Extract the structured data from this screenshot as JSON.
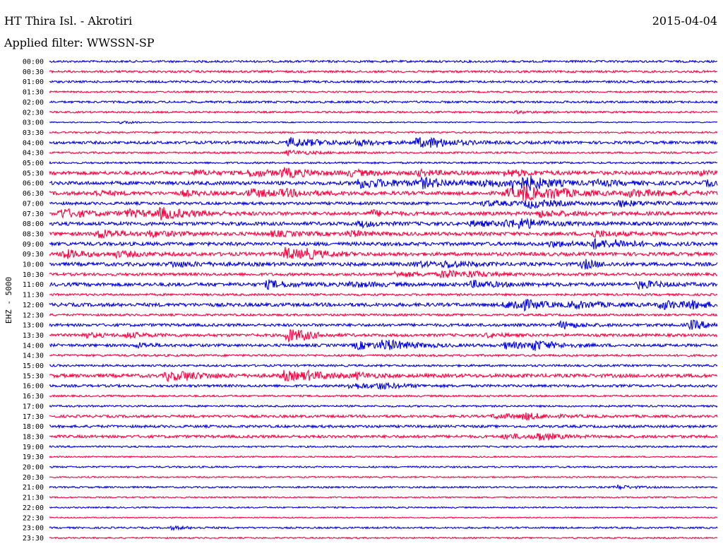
{
  "header": {
    "title": "HT Thira Isl. - Akrotiri",
    "date": "2015-04-04",
    "filter": "Applied filter: WWSSN-SP"
  },
  "colors": {
    "odd_rows": "#0000e0",
    "even_rows": "#ff0040"
  },
  "chart_data": {
    "type": "line",
    "title": "",
    "ylabel": "EHZ - 5000",
    "grid": false,
    "categories": [
      "00:00",
      "00:30",
      "01:00",
      "01:30",
      "02:00",
      "02:30",
      "03:00",
      "03:30",
      "04:00",
      "04:30",
      "05:00",
      "05:30",
      "06:00",
      "06:30",
      "07:00",
      "07:30",
      "08:00",
      "08:30",
      "09:00",
      "09:30",
      "10:00",
      "10:30",
      "11:00",
      "11:30",
      "12:00",
      "12:30",
      "13:00",
      "13:30",
      "14:00",
      "14:30",
      "15:00",
      "15:30",
      "16:00",
      "16:30",
      "17:00",
      "17:30",
      "18:00",
      "18:30",
      "19:00",
      "19:30",
      "20:00",
      "20:30",
      "21:00",
      "21:30",
      "22:00",
      "22:30",
      "23:00",
      "23:30"
    ],
    "x_range_minutes": [
      0,
      30
    ],
    "series": [
      {
        "noise": 1.5,
        "events": []
      },
      {
        "noise": 1.5,
        "events": []
      },
      {
        "noise": 1.5,
        "events": []
      },
      {
        "noise": 1.2,
        "events": []
      },
      {
        "noise": 1.5,
        "events": []
      },
      {
        "noise": 1.3,
        "events": [
          [
            21.0,
            1.5,
            1.2
          ]
        ]
      },
      {
        "noise": 0.8,
        "events": [
          [
            3.2,
            0.5,
            1.5
          ],
          [
            3.6,
            0.5,
            1.5
          ]
        ]
      },
      {
        "noise": 1.2,
        "events": []
      },
      {
        "noise": 2.0,
        "events": [
          [
            10.8,
            2.5,
            6
          ],
          [
            13.8,
            1.5,
            3
          ],
          [
            16.5,
            2.0,
            6
          ],
          [
            17.2,
            1.5,
            3
          ]
        ]
      },
      {
        "noise": 1.3,
        "events": [
          [
            10.7,
            1.8,
            3
          ]
        ]
      },
      {
        "noise": 1.3,
        "events": []
      },
      {
        "noise": 2.5,
        "events": [
          [
            6.5,
            1.5,
            3
          ],
          [
            9.0,
            2.0,
            4
          ],
          [
            10.5,
            2.0,
            5
          ],
          [
            13.5,
            2.0,
            3
          ],
          [
            16.5,
            2.0,
            3
          ],
          [
            20.5,
            2.0,
            4
          ],
          [
            29.2,
            1.0,
            3
          ]
        ]
      },
      {
        "noise": 2.5,
        "events": [
          [
            13.8,
            3.5,
            6
          ],
          [
            16.7,
            2.0,
            5
          ],
          [
            19.5,
            2.0,
            4
          ],
          [
            20.8,
            2.0,
            8
          ],
          [
            21.5,
            1.5,
            4
          ],
          [
            24.5,
            2.0,
            3
          ],
          [
            29.5,
            1.0,
            3
          ]
        ]
      },
      {
        "noise": 2.5,
        "events": [
          [
            2.0,
            1.5,
            3
          ],
          [
            6.0,
            1.5,
            3
          ],
          [
            9.0,
            2.5,
            5
          ],
          [
            10.5,
            2.0,
            3
          ],
          [
            20.5,
            3.0,
            5
          ],
          [
            21.3,
            1.0,
            8
          ],
          [
            22.5,
            2.0,
            5
          ],
          [
            26.0,
            3.0,
            4
          ]
        ]
      },
      {
        "noise": 2.0,
        "events": [
          [
            19.5,
            3.0,
            3
          ],
          [
            21.5,
            2.0,
            5
          ],
          [
            25.5,
            2.0,
            4
          ]
        ]
      },
      {
        "noise": 2.5,
        "events": [
          [
            0.5,
            2.0,
            6
          ],
          [
            3.5,
            2.5,
            4
          ],
          [
            5.0,
            2.0,
            6
          ],
          [
            14.5,
            1.0,
            4
          ],
          [
            22.0,
            2.0,
            4
          ]
        ]
      },
      {
        "noise": 2.5,
        "events": [
          [
            14.0,
            1.0,
            4
          ],
          [
            19.0,
            2.0,
            3
          ],
          [
            20.5,
            1.5,
            4
          ],
          [
            21.2,
            1.5,
            5
          ]
        ]
      },
      {
        "noise": 2.5,
        "events": [
          [
            2.2,
            1.5,
            6
          ],
          [
            4.5,
            2.0,
            3
          ],
          [
            10.0,
            2.0,
            3
          ],
          [
            13.5,
            1.0,
            4
          ],
          [
            24.5,
            1.5,
            4
          ]
        ]
      },
      {
        "noise": 2.5,
        "events": [
          [
            22.5,
            2.0,
            3
          ],
          [
            24.4,
            1.5,
            6
          ],
          [
            25.5,
            1.5,
            3
          ]
        ]
      },
      {
        "noise": 2.5,
        "events": [
          [
            0.6,
            1.5,
            6
          ],
          [
            3.0,
            2.0,
            3
          ],
          [
            10.6,
            1.5,
            8
          ],
          [
            11.5,
            1.5,
            4
          ]
        ]
      },
      {
        "noise": 2.5,
        "events": [
          [
            5.5,
            2.0,
            3
          ],
          [
            16.5,
            1.5,
            3
          ],
          [
            17.8,
            1.5,
            4
          ],
          [
            24.0,
            1.0,
            6
          ]
        ]
      },
      {
        "noise": 2.0,
        "events": [
          [
            15.5,
            2.5,
            3
          ],
          [
            17.7,
            1.2,
            5
          ],
          [
            18.8,
            1.5,
            3
          ]
        ]
      },
      {
        "noise": 2.5,
        "events": [
          [
            9.8,
            1.5,
            5
          ],
          [
            13.5,
            2.0,
            3
          ],
          [
            19.0,
            2.0,
            4
          ],
          [
            26.5,
            1.5,
            5
          ]
        ]
      },
      {
        "noise": 1.5,
        "events": []
      },
      {
        "noise": 2.5,
        "events": [
          [
            20.5,
            2.0,
            4
          ],
          [
            21.0,
            1.5,
            6
          ],
          [
            23.5,
            2.0,
            4
          ],
          [
            27.5,
            1.5,
            6
          ],
          [
            28.7,
            1.5,
            4
          ]
        ]
      },
      {
        "noise": 1.5,
        "events": []
      },
      {
        "noise": 2.0,
        "events": [
          [
            23.0,
            1.2,
            5
          ],
          [
            28.8,
            1.5,
            6
          ]
        ]
      },
      {
        "noise": 2.0,
        "events": [
          [
            1.5,
            1.5,
            3
          ],
          [
            3.5,
            1.5,
            3
          ],
          [
            10.7,
            1.0,
            10
          ],
          [
            11.3,
            1.0,
            4
          ],
          [
            19.7,
            1.0,
            3
          ]
        ]
      },
      {
        "noise": 2.0,
        "events": [
          [
            4.0,
            1.0,
            3
          ],
          [
            13.8,
            2.0,
            5
          ],
          [
            15.0,
            2.0,
            6
          ],
          [
            20.5,
            2.0,
            4
          ],
          [
            21.7,
            1.5,
            6
          ]
        ]
      },
      {
        "noise": 1.5,
        "events": []
      },
      {
        "noise": 1.5,
        "events": []
      },
      {
        "noise": 2.5,
        "events": [
          [
            5.3,
            1.5,
            6
          ],
          [
            6.0,
            1.5,
            3
          ],
          [
            10.5,
            2.0,
            6
          ],
          [
            11.5,
            2.0,
            3
          ],
          [
            13.8,
            1.0,
            3
          ]
        ]
      },
      {
        "noise": 1.8,
        "events": [
          [
            13.5,
            2.0,
            4
          ],
          [
            14.8,
            1.5,
            3
          ]
        ]
      },
      {
        "noise": 1.3,
        "events": []
      },
      {
        "noise": 1.3,
        "events": []
      },
      {
        "noise": 1.8,
        "events": [
          [
            20.0,
            2.0,
            3
          ],
          [
            21.3,
            1.5,
            4
          ]
        ]
      },
      {
        "noise": 1.8,
        "events": []
      },
      {
        "noise": 2.0,
        "events": [
          [
            20.5,
            1.5,
            3
          ],
          [
            21.9,
            1.2,
            5
          ]
        ]
      },
      {
        "noise": 1.2,
        "events": []
      },
      {
        "noise": 1.0,
        "events": []
      },
      {
        "noise": 1.2,
        "events": []
      },
      {
        "noise": 1.0,
        "events": []
      },
      {
        "noise": 1.2,
        "events": [
          [
            25.5,
            1.0,
            3
          ]
        ]
      },
      {
        "noise": 1.0,
        "events": []
      },
      {
        "noise": 1.0,
        "events": []
      },
      {
        "noise": 0.8,
        "events": []
      },
      {
        "noise": 1.2,
        "events": [
          [
            5.5,
            1.5,
            2
          ]
        ]
      },
      {
        "noise": 1.0,
        "events": []
      }
    ]
  }
}
